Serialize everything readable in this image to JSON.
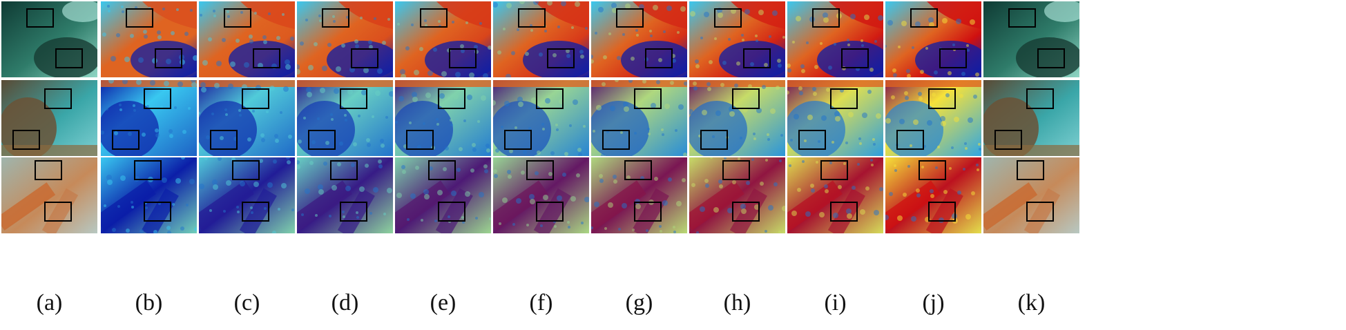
{
  "figure": {
    "column_labels": [
      "(a)",
      "(b)",
      "(c)",
      "(d)",
      "(e)",
      "(f)",
      "(g)",
      "(h)",
      "(i)",
      "(j)",
      "(k)"
    ],
    "rows": 3,
    "colors": {
      "heatmap_low": "#0b1ea8",
      "heatmap_mid": "#39c8f0",
      "heatmap_warm": "#f6e23a",
      "heatmap_high": "#d01010",
      "roi_box": "#000000",
      "background": "#ffffff"
    }
  }
}
